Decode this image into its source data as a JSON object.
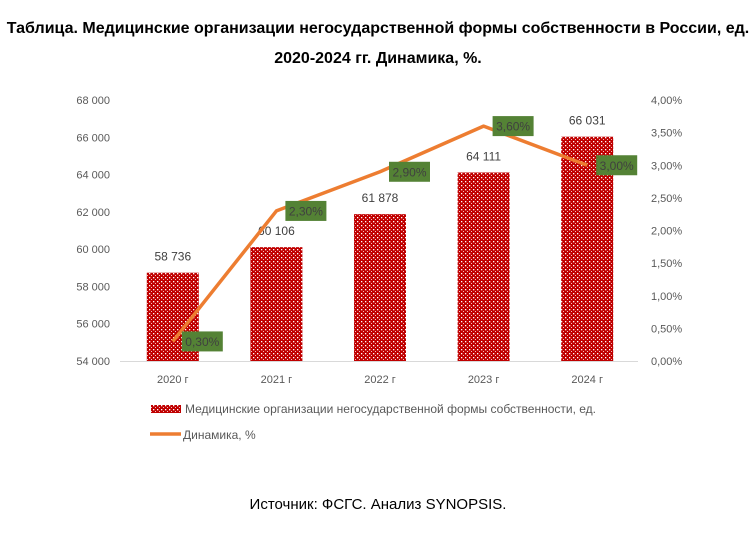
{
  "title": "Таблица. Медицинские организации негосударственной формы собственности в России, ед. 2020-2024 гг. Динамика, %.",
  "source": "Источник: ФСГС. Анализ SYNOPSIS.",
  "chart_data": {
    "type": "bar+line",
    "categories": [
      "2020 г",
      "2021 г",
      "2022 г",
      "2023 г",
      "2024 г"
    ],
    "series": [
      {
        "name": "Медицинские организации негосударственной формы собственности, ед.",
        "type": "bar",
        "axis": "left",
        "values": [
          58736,
          60106,
          61878,
          64111,
          66031
        ],
        "labels": [
          "58 736",
          "60 106",
          "61 878",
          "64 111",
          "66 031"
        ],
        "color": "#c00000"
      },
      {
        "name": "Динамика, %",
        "type": "line",
        "axis": "right",
        "values": [
          0.3,
          2.3,
          2.9,
          3.6,
          3.0
        ],
        "labels": [
          "0,30%",
          "2,30%",
          "2,90%",
          "3,60%",
          "3,00%"
        ],
        "color": "#ed7d31",
        "label_bg": "#548235"
      }
    ],
    "y_left": {
      "range": [
        54000,
        68000
      ],
      "ticks": [
        "54 000",
        "56 000",
        "58 000",
        "60 000",
        "62 000",
        "64 000",
        "66 000",
        "68 000"
      ]
    },
    "y_right": {
      "range": [
        0,
        4
      ],
      "ticks": [
        "0,00%",
        "0,50%",
        "1,00%",
        "1,50%",
        "2,00%",
        "2,50%",
        "3,00%",
        "3,50%",
        "4,00%"
      ]
    },
    "grid": false,
    "legend_placement": "bottom"
  }
}
